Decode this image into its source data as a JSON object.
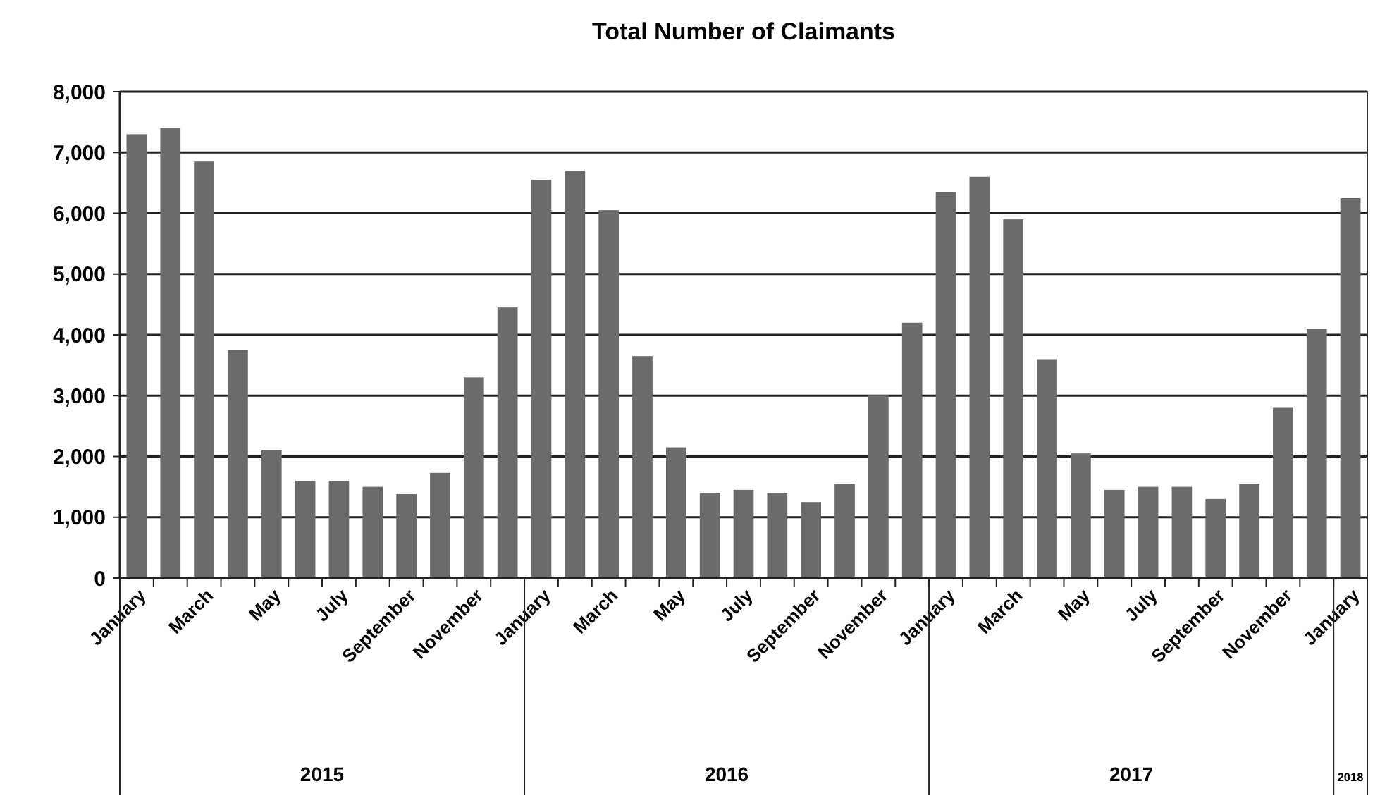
{
  "chart_data": {
    "type": "bar",
    "title": "Total Number of Claimants",
    "categories": [
      "January",
      null,
      "March",
      null,
      "May",
      null,
      "July",
      null,
      "September",
      null,
      "November",
      null,
      "January",
      null,
      "March",
      null,
      "May",
      null,
      "July",
      null,
      "September",
      null,
      "November",
      null,
      "January",
      null,
      "March",
      null,
      "May",
      null,
      "July",
      null,
      "September",
      null,
      "November",
      null,
      "January"
    ],
    "values": [
      7300,
      7400,
      6850,
      3750,
      2100,
      1600,
      1600,
      1500,
      1380,
      1730,
      3300,
      4450,
      6550,
      6700,
      6050,
      3650,
      2150,
      1400,
      1450,
      1400,
      1250,
      1550,
      3000,
      4200,
      6350,
      6600,
      5900,
      3600,
      2050,
      1450,
      1500,
      1500,
      1300,
      1550,
      2800,
      4100,
      6250
    ],
    "color": "#6b6b6b",
    "ylim": [
      0,
      8000
    ],
    "yticks": [
      {
        "value": 0,
        "label": "0"
      },
      {
        "value": 1000,
        "label": "1,000"
      },
      {
        "value": 2000,
        "label": "2,000"
      },
      {
        "value": 3000,
        "label": "3,000"
      },
      {
        "value": 4000,
        "label": "4,000"
      },
      {
        "value": 5000,
        "label": "5,000"
      },
      {
        "value": 6000,
        "label": "6,000"
      },
      {
        "value": 7000,
        "label": "7,000"
      },
      {
        "value": 8000,
        "label": "8,000"
      }
    ],
    "grid": "y",
    "annotations": [
      "2015",
      "2016",
      "2017",
      "2018"
    ]
  }
}
